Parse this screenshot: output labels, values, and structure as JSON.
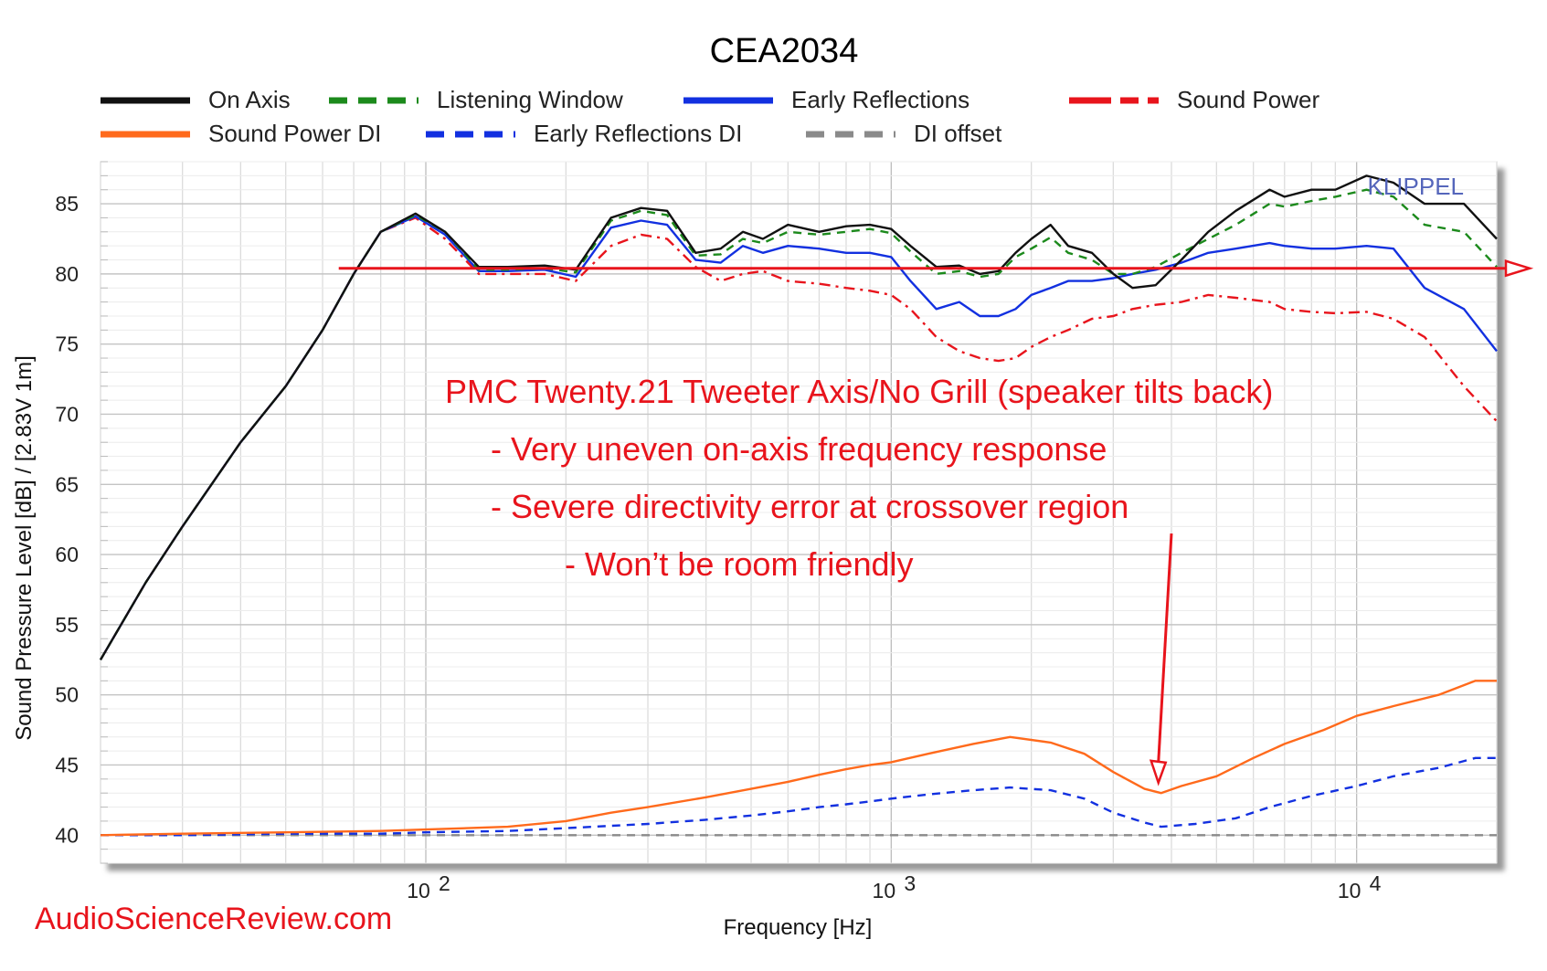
{
  "chart_data": {
    "type": "line",
    "title": "CEA2034",
    "xlabel": "Frequency [Hz]",
    "ylabel": "Sound Pressure Level [dB]  / [2.83V 1m]",
    "xscale": "log",
    "xlim": [
      20,
      20000
    ],
    "ylim": [
      38,
      88
    ],
    "grid": true,
    "legend_position": "top",
    "x_tick_labels": [
      {
        "base": "10",
        "exp": "2",
        "value": 100
      },
      {
        "base": "10",
        "exp": "3",
        "value": 1000
      },
      {
        "base": "10",
        "exp": "4",
        "value": 10000
      }
    ],
    "y_ticks": [
      40,
      45,
      50,
      55,
      60,
      65,
      70,
      75,
      80,
      85
    ],
    "watermark": "KLIPPEL",
    "series": [
      {
        "name": "On Axis",
        "color": "#111111",
        "style": "solid",
        "points": [
          [
            20,
            52.5
          ],
          [
            25,
            58
          ],
          [
            30,
            62
          ],
          [
            40,
            68
          ],
          [
            50,
            72
          ],
          [
            60,
            76
          ],
          [
            70,
            80
          ],
          [
            80,
            83
          ],
          [
            95,
            84.3
          ],
          [
            110,
            83
          ],
          [
            130,
            80.5
          ],
          [
            150,
            80.5
          ],
          [
            180,
            80.6
          ],
          [
            210,
            80.3
          ],
          [
            250,
            84
          ],
          [
            290,
            84.7
          ],
          [
            330,
            84.5
          ],
          [
            380,
            81.5
          ],
          [
            430,
            81.8
          ],
          [
            480,
            83
          ],
          [
            530,
            82.5
          ],
          [
            600,
            83.5
          ],
          [
            700,
            83
          ],
          [
            800,
            83.4
          ],
          [
            900,
            83.5
          ],
          [
            1000,
            83.2
          ],
          [
            1100,
            82
          ],
          [
            1250,
            80.5
          ],
          [
            1400,
            80.6
          ],
          [
            1550,
            80
          ],
          [
            1700,
            80.2
          ],
          [
            1850,
            81.5
          ],
          [
            2000,
            82.5
          ],
          [
            2200,
            83.5
          ],
          [
            2400,
            82
          ],
          [
            2700,
            81.5
          ],
          [
            3000,
            80
          ],
          [
            3300,
            79
          ],
          [
            3700,
            79.2
          ],
          [
            4200,
            81
          ],
          [
            4800,
            83
          ],
          [
            5500,
            84.5
          ],
          [
            6500,
            86
          ],
          [
            7000,
            85.5
          ],
          [
            8000,
            86
          ],
          [
            9000,
            86
          ],
          [
            10500,
            87
          ],
          [
            12000,
            86.5
          ],
          [
            14000,
            85
          ],
          [
            17000,
            85
          ],
          [
            20000,
            82.5
          ]
        ]
      },
      {
        "name": "Listening Window",
        "color": "#1c8a1c",
        "style": "dashed",
        "points": [
          [
            20,
            52.5
          ],
          [
            25,
            58
          ],
          [
            30,
            62
          ],
          [
            40,
            68
          ],
          [
            50,
            72
          ],
          [
            60,
            76
          ],
          [
            70,
            80
          ],
          [
            80,
            83
          ],
          [
            95,
            84.2
          ],
          [
            110,
            83
          ],
          [
            130,
            80.3
          ],
          [
            150,
            80.3
          ],
          [
            180,
            80.4
          ],
          [
            210,
            80.1
          ],
          [
            250,
            83.8
          ],
          [
            290,
            84.5
          ],
          [
            330,
            84.2
          ],
          [
            380,
            81.3
          ],
          [
            430,
            81.4
          ],
          [
            480,
            82.5
          ],
          [
            530,
            82.2
          ],
          [
            600,
            83
          ],
          [
            700,
            82.8
          ],
          [
            800,
            83
          ],
          [
            900,
            83.2
          ],
          [
            1000,
            82.9
          ],
          [
            1100,
            81.6
          ],
          [
            1250,
            80
          ],
          [
            1400,
            80.2
          ],
          [
            1550,
            79.8
          ],
          [
            1700,
            80
          ],
          [
            1850,
            81.2
          ],
          [
            2000,
            81.8
          ],
          [
            2200,
            82.6
          ],
          [
            2400,
            81.5
          ],
          [
            2700,
            81
          ],
          [
            3000,
            80
          ],
          [
            3300,
            80
          ],
          [
            3700,
            80.5
          ],
          [
            4200,
            81.5
          ],
          [
            4800,
            82.5
          ],
          [
            5500,
            83.5
          ],
          [
            6500,
            85
          ],
          [
            7000,
            84.8
          ],
          [
            8000,
            85.2
          ],
          [
            9000,
            85.5
          ],
          [
            10500,
            86
          ],
          [
            12000,
            85.5
          ],
          [
            14000,
            83.5
          ],
          [
            17000,
            83
          ],
          [
            20000,
            80.5
          ]
        ]
      },
      {
        "name": "Early Reflections",
        "color": "#1230e0",
        "style": "solid",
        "points": [
          [
            20,
            52.5
          ],
          [
            25,
            58
          ],
          [
            30,
            62
          ],
          [
            40,
            68
          ],
          [
            50,
            72
          ],
          [
            60,
            76
          ],
          [
            70,
            80
          ],
          [
            80,
            83
          ],
          [
            95,
            84.1
          ],
          [
            110,
            82.8
          ],
          [
            130,
            80.2
          ],
          [
            150,
            80.2
          ],
          [
            180,
            80.3
          ],
          [
            210,
            79.8
          ],
          [
            250,
            83.3
          ],
          [
            290,
            83.8
          ],
          [
            330,
            83.5
          ],
          [
            380,
            81
          ],
          [
            430,
            80.8
          ],
          [
            480,
            82
          ],
          [
            530,
            81.5
          ],
          [
            600,
            82
          ],
          [
            700,
            81.8
          ],
          [
            800,
            81.5
          ],
          [
            900,
            81.5
          ],
          [
            1000,
            81.2
          ],
          [
            1100,
            79.5
          ],
          [
            1250,
            77.5
          ],
          [
            1400,
            78
          ],
          [
            1550,
            77
          ],
          [
            1700,
            77
          ],
          [
            1850,
            77.5
          ],
          [
            2000,
            78.5
          ],
          [
            2200,
            79
          ],
          [
            2400,
            79.5
          ],
          [
            2700,
            79.5
          ],
          [
            3000,
            79.7
          ],
          [
            3300,
            80
          ],
          [
            3700,
            80.3
          ],
          [
            4200,
            80.8
          ],
          [
            4800,
            81.5
          ],
          [
            5500,
            81.8
          ],
          [
            6500,
            82.2
          ],
          [
            7000,
            82
          ],
          [
            8000,
            81.8
          ],
          [
            9000,
            81.8
          ],
          [
            10500,
            82
          ],
          [
            12000,
            81.8
          ],
          [
            14000,
            79
          ],
          [
            17000,
            77.5
          ],
          [
            20000,
            74.5
          ]
        ]
      },
      {
        "name": "Sound Power",
        "color": "#e8141c",
        "style": "dashdot",
        "points": [
          [
            20,
            52.5
          ],
          [
            25,
            58
          ],
          [
            30,
            62
          ],
          [
            40,
            68
          ],
          [
            50,
            72
          ],
          [
            60,
            76
          ],
          [
            70,
            80
          ],
          [
            80,
            83
          ],
          [
            95,
            84
          ],
          [
            110,
            82.5
          ],
          [
            130,
            80
          ],
          [
            150,
            80
          ],
          [
            180,
            80
          ],
          [
            210,
            79.5
          ],
          [
            250,
            82
          ],
          [
            290,
            82.8
          ],
          [
            330,
            82.5
          ],
          [
            380,
            80.5
          ],
          [
            430,
            79.5
          ],
          [
            480,
            80
          ],
          [
            530,
            80.2
          ],
          [
            600,
            79.5
          ],
          [
            700,
            79.3
          ],
          [
            800,
            79
          ],
          [
            900,
            78.8
          ],
          [
            1000,
            78.5
          ],
          [
            1100,
            77.5
          ],
          [
            1250,
            75.5
          ],
          [
            1400,
            74.5
          ],
          [
            1550,
            74
          ],
          [
            1700,
            73.8
          ],
          [
            1850,
            74
          ],
          [
            2000,
            74.8
          ],
          [
            2200,
            75.5
          ],
          [
            2400,
            76
          ],
          [
            2700,
            76.8
          ],
          [
            3000,
            77
          ],
          [
            3300,
            77.5
          ],
          [
            3700,
            77.8
          ],
          [
            4200,
            78
          ],
          [
            4800,
            78.5
          ],
          [
            5500,
            78.3
          ],
          [
            6500,
            78
          ],
          [
            7000,
            77.5
          ],
          [
            8000,
            77.3
          ],
          [
            9000,
            77.2
          ],
          [
            10500,
            77.3
          ],
          [
            12000,
            76.8
          ],
          [
            14000,
            75.5
          ],
          [
            17000,
            72
          ],
          [
            20000,
            69.5
          ]
        ]
      },
      {
        "name": "Sound Power DI",
        "color": "#ff6a1c",
        "style": "solid",
        "points": [
          [
            20,
            40
          ],
          [
            30,
            40.1
          ],
          [
            50,
            40.2
          ],
          [
            80,
            40.3
          ],
          [
            100,
            40.4
          ],
          [
            150,
            40.6
          ],
          [
            200,
            41
          ],
          [
            250,
            41.6
          ],
          [
            300,
            42
          ],
          [
            400,
            42.7
          ],
          [
            500,
            43.3
          ],
          [
            600,
            43.8
          ],
          [
            700,
            44.3
          ],
          [
            800,
            44.7
          ],
          [
            900,
            45
          ],
          [
            1000,
            45.2
          ],
          [
            1200,
            45.8
          ],
          [
            1500,
            46.5
          ],
          [
            1800,
            47
          ],
          [
            2200,
            46.6
          ],
          [
            2600,
            45.8
          ],
          [
            3000,
            44.5
          ],
          [
            3500,
            43.3
          ],
          [
            3800,
            43
          ],
          [
            4200,
            43.5
          ],
          [
            5000,
            44.2
          ],
          [
            6000,
            45.5
          ],
          [
            7000,
            46.5
          ],
          [
            8500,
            47.5
          ],
          [
            10000,
            48.5
          ],
          [
            12000,
            49.2
          ],
          [
            15000,
            50
          ],
          [
            18000,
            51
          ],
          [
            20000,
            51
          ]
        ]
      },
      {
        "name": "Early Reflections DI",
        "color": "#1230e0",
        "style": "dashed",
        "points": [
          [
            20,
            40
          ],
          [
            30,
            40
          ],
          [
            50,
            40.1
          ],
          [
            80,
            40.1
          ],
          [
            100,
            40.2
          ],
          [
            150,
            40.3
          ],
          [
            200,
            40.5
          ],
          [
            300,
            40.8
          ],
          [
            400,
            41.1
          ],
          [
            500,
            41.4
          ],
          [
            600,
            41.7
          ],
          [
            700,
            42
          ],
          [
            800,
            42.2
          ],
          [
            900,
            42.4
          ],
          [
            1000,
            42.6
          ],
          [
            1200,
            42.9
          ],
          [
            1500,
            43.2
          ],
          [
            1800,
            43.4
          ],
          [
            2200,
            43.2
          ],
          [
            2600,
            42.6
          ],
          [
            3000,
            41.6
          ],
          [
            3500,
            40.9
          ],
          [
            3800,
            40.6
          ],
          [
            4500,
            40.8
          ],
          [
            5500,
            41.2
          ],
          [
            6500,
            42
          ],
          [
            8000,
            42.8
          ],
          [
            10000,
            43.5
          ],
          [
            12000,
            44.2
          ],
          [
            15000,
            44.8
          ],
          [
            18000,
            45.5
          ],
          [
            20000,
            45.5
          ]
        ]
      },
      {
        "name": "DI offset",
        "color": "#8a8a8a",
        "style": "dashed",
        "points": [
          [
            20,
            40
          ],
          [
            20000,
            40
          ]
        ]
      }
    ]
  },
  "annotations": {
    "headline": "PMC Twenty.21 Tweeter Axis/No Grill (speaker tilts back)",
    "bullets": [
      "- Very uneven on-axis frequency response",
      "- Severe directivity error at crossover region",
      "- Won’t be room friendly"
    ],
    "reference_line_level": 80.4,
    "reference_line_start_hz": 65,
    "arrow_from_hz": 4000,
    "arrow_from_db": 61.5,
    "arrow_to_hz": 3750,
    "arrow_to_db": 44,
    "color": "#e8141c"
  },
  "watermark_text": "AudioScienceReview.com"
}
